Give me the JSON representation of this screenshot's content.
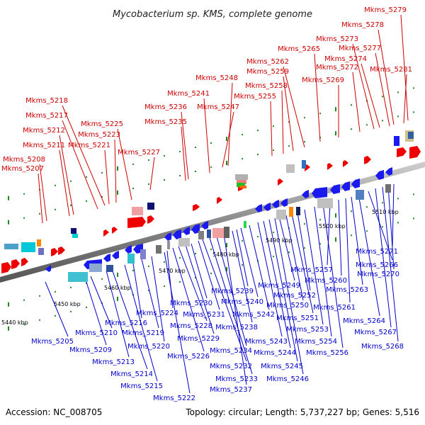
{
  "title": "Mycobacterium sp. KMS, complete genome",
  "footer": {
    "accession": "Accession: NC_008705",
    "summary": "Topology: circular; Length: 5,737,227 bp; Genes: 5,516"
  },
  "colors": {
    "forward_label": "#cc0000",
    "reverse_label": "#0000cc",
    "backbone": "#888888"
  },
  "kbp_ticks": [
    "5440 kbp",
    "5450 kbp",
    "5460 kbp",
    "5470 kbp",
    "5480 kbp",
    "5490 kbp",
    "5500 kbp",
    "5510 kbp"
  ],
  "forward_labels": [
    "Mkms_5207",
    "Mkms_5208",
    "Mkms_5211",
    "Mkms_5212",
    "Mkms_5217",
    "Mkms_5218",
    "Mkms_5221",
    "Mkms_5223",
    "Mkms_5225",
    "Mkms_5227",
    "Mkms_5235",
    "Mkms_5236",
    "Mkms_5241",
    "Mkms_5247",
    "Mkms_5248",
    "Mkms_5255",
    "Mkms_5258",
    "Mkms_5259",
    "Mkms_5262",
    "Mkms_5265",
    "Mkms_5269",
    "Mkms_5272",
    "Mkms_5273",
    "Mkms_5274",
    "Mkms_5277",
    "Mkms_5278",
    "Mkms_5279",
    "Mkms_5281"
  ],
  "reverse_labels": [
    "Mkms_5205",
    "Mkms_5209",
    "Mkms_5210",
    "Mkms_5213",
    "Mkms_5214",
    "Mkms_5215",
    "Mkms_5216",
    "Mkms_5219",
    "Mkms_5220",
    "Mkms_5222",
    "Mkms_5224",
    "Mkms_5226",
    "Mkms_5228",
    "Mkms_5229",
    "Mkms_5230",
    "Mkms_5231",
    "Mkms_5232",
    "Mkms_5233",
    "Mkms_5234",
    "Mkms_5237",
    "Mkms_5238",
    "Mkms_5239",
    "Mkms_5240",
    "Mkms_5242",
    "Mkms_5243",
    "Mkms_5244",
    "Mkms_5245",
    "Mkms_5246",
    "Mkms_5249",
    "Mkms_5250",
    "Mkms_5251",
    "Mkms_5252",
    "Mkms_5253",
    "Mkms_5254",
    "Mkms_5256",
    "Mkms_5257",
    "Mkms_5260",
    "Mkms_5261",
    "Mkms_5263",
    "Mkms_5264",
    "Mkms_5266",
    "Mkms_5267",
    "Mkms_5268",
    "Mkms_5270",
    "Mkms_5271"
  ]
}
